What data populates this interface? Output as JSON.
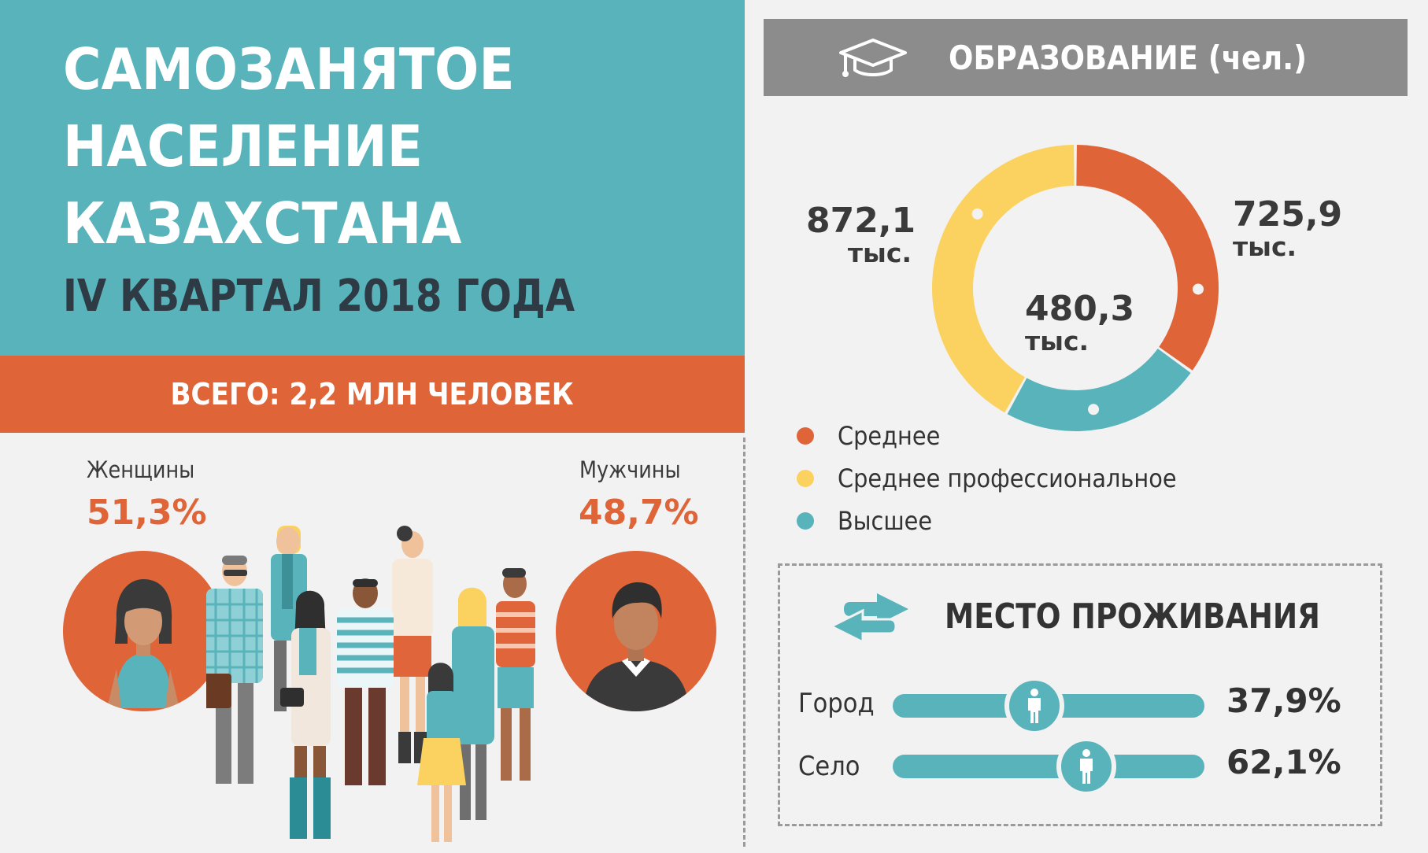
{
  "title": {
    "lines": [
      "САМОЗАНЯТОЕ",
      "НАСЕЛЕНИЕ",
      "КАЗАХСТАНА"
    ],
    "subtitle": "IV КВАРТАЛ 2018 ГОДА"
  },
  "total": {
    "text": "ВСЕГО:  2,2 МЛН ЧЕЛОВЕК"
  },
  "gender": {
    "women": {
      "label": "Женщины",
      "pct": "51,3%",
      "value": 51.3
    },
    "men": {
      "label": "Мужчины",
      "pct": "48,7%",
      "value": 48.7
    }
  },
  "education": {
    "header": "ОБРАЗОВАНИЕ (чел.)",
    "icon": "graduation-cap-icon",
    "unit": "тыс."
  },
  "residence": {
    "header": "МЕСТО ПРОЖИВАНИЯ",
    "icon": "swap-arrows-icon"
  },
  "colors": {
    "teal": "#59b3bb",
    "orange": "#df6437",
    "yellow": "#fbd25f",
    "gray_header": "#8c8c8c",
    "background": "#f2f2f2",
    "text_dark": "#333333"
  },
  "chart_data": [
    {
      "type": "pie",
      "title": "ОБРАЗОВАНИЕ (чел.)",
      "unit": "тыс.",
      "donut": true,
      "slices": [
        {
          "name": "Среднее",
          "value": 725.9,
          "label": "725,9",
          "color": "#df6437"
        },
        {
          "name": "Высшее",
          "value": 480.3,
          "label": "480,3",
          "color": "#59b3bb"
        },
        {
          "name": "Среднее профессиональное",
          "value": 872.1,
          "label": "872,1",
          "color": "#fbd25f"
        }
      ],
      "legend": [
        "Среднее",
        "Среднее профессиональное",
        "Высшее"
      ],
      "legend_placement": "bottom"
    },
    {
      "type": "bar",
      "title": "МЕСТО ПРОЖИВАНИЯ",
      "orientation": "horizontal",
      "categories": [
        "Город",
        "Село"
      ],
      "values": [
        37.9,
        62.1
      ],
      "labels": [
        "37,9%",
        "62,1%"
      ],
      "ylim": [
        0,
        100
      ]
    }
  ]
}
